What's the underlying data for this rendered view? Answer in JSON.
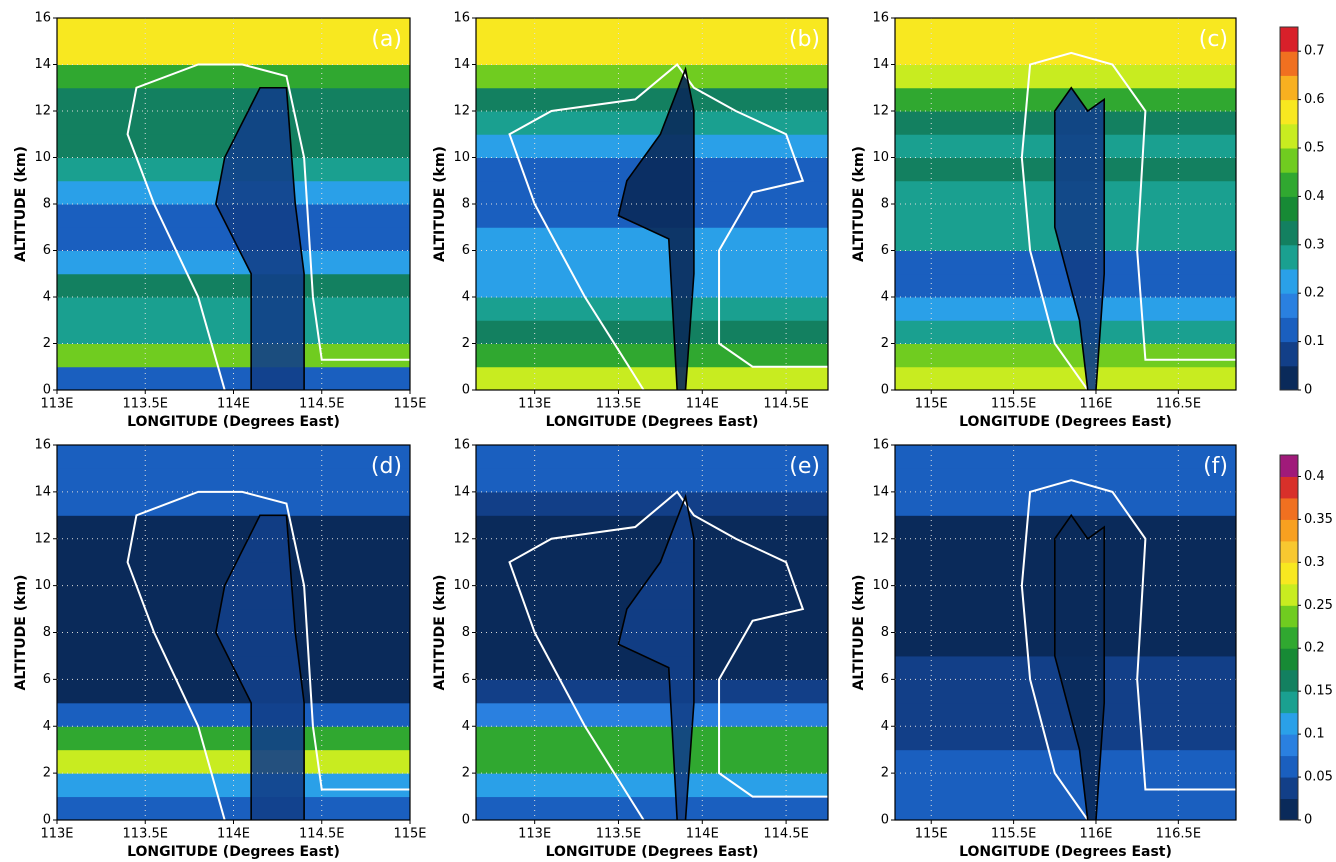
{
  "chart_data": [
    {
      "type": "contour",
      "panel": "(a)",
      "xlabel": "LONGITUDE (Degrees East)",
      "ylabel": "ALTITUDE (km)",
      "xlim": [
        113,
        115
      ],
      "xticks": [
        {
          "value": 113,
          "label": "113E"
        },
        {
          "value": 113.5,
          "label": "113.5E"
        },
        {
          "value": 114,
          "label": "114E"
        },
        {
          "value": 114.5,
          "label": "114.5E"
        },
        {
          "value": 115,
          "label": "115E"
        }
      ],
      "ylim": [
        0,
        16
      ],
      "yticks": [
        0,
        2,
        4,
        6,
        8,
        10,
        12,
        14,
        16
      ],
      "grid": true,
      "colorbar_row": 0,
      "layer_alt": [
        0,
        1,
        2,
        3,
        4,
        5,
        6,
        7,
        8,
        9,
        10,
        11,
        12,
        13,
        14,
        15,
        16
      ],
      "profile": [
        0.15,
        0.45,
        0.3,
        0.25,
        0.35,
        0.2,
        0.15,
        0.15,
        0.2,
        0.3,
        0.35,
        0.35,
        0.35,
        0.4,
        0.6,
        0.6
      ],
      "core_value": 0.05,
      "white_contour": {
        "lon": [
          113.95,
          113.8,
          113.55,
          113.4,
          113.45,
          113.8,
          114.05,
          114.3,
          114.4,
          114.45,
          114.5,
          115
        ],
        "alt": [
          0,
          4,
          8,
          11,
          13,
          14,
          14,
          13.5,
          10,
          4,
          1.3,
          1.3
        ]
      },
      "black_contour": {
        "lon": [
          114.1,
          114.1,
          113.9,
          113.95,
          114.15,
          114.3,
          114.35,
          114.4,
          114.4
        ],
        "alt": [
          0,
          5,
          8,
          10,
          13,
          13,
          8,
          5,
          0
        ]
      }
    },
    {
      "type": "contour",
      "panel": "(b)",
      "xlabel": "LONGITUDE (Degrees East)",
      "ylabel": "ALTITUDE (km)",
      "xlim": [
        112.65,
        114.75
      ],
      "xticks": [
        {
          "value": 113,
          "label": "113E"
        },
        {
          "value": 113.5,
          "label": "113.5E"
        },
        {
          "value": 114,
          "label": "114E"
        },
        {
          "value": 114.5,
          "label": "114.5E"
        }
      ],
      "ylim": [
        0,
        16
      ],
      "yticks": [
        0,
        2,
        4,
        6,
        8,
        10,
        12,
        14,
        16
      ],
      "grid": true,
      "colorbar_row": 0,
      "layer_alt": [
        0,
        1,
        2,
        3,
        4,
        5,
        6,
        7,
        8,
        9,
        10,
        11,
        12,
        13,
        14,
        15,
        16
      ],
      "profile": [
        0.5,
        0.4,
        0.35,
        0.3,
        0.2,
        0.2,
        0.2,
        0.15,
        0.15,
        0.15,
        0.2,
        0.25,
        0.35,
        0.45,
        0.55,
        0.6
      ],
      "core_value": 0.02,
      "white_contour": {
        "lon": [
          113.65,
          113.3,
          113.0,
          112.85,
          113.1,
          113.6,
          113.85,
          113.95,
          114.2,
          114.5,
          114.6,
          114.3,
          114.1,
          114.1,
          114.3,
          114.75
        ],
        "alt": [
          0,
          4,
          8,
          11,
          12,
          12.5,
          14,
          13,
          12,
          11,
          9,
          8.5,
          6,
          2,
          1,
          1
        ]
      },
      "black_contour": {
        "lon": [
          113.85,
          113.8,
          113.5,
          113.55,
          113.75,
          113.9,
          113.95,
          113.95,
          113.9
        ],
        "alt": [
          0,
          6.5,
          7.5,
          9,
          11,
          13.8,
          12,
          5,
          0
        ]
      }
    },
    {
      "type": "contour",
      "panel": "(c)",
      "xlabel": "LONGITUDE (Degrees East)",
      "ylabel": "ALTITUDE (km)",
      "xlim": [
        114.78,
        116.85
      ],
      "xticks": [
        {
          "value": 115,
          "label": "115E"
        },
        {
          "value": 115.5,
          "label": "115.5E"
        },
        {
          "value": 116,
          "label": "116E"
        },
        {
          "value": 116.5,
          "label": "116.5E"
        }
      ],
      "ylim": [
        0,
        16
      ],
      "yticks": [
        0,
        2,
        4,
        6,
        8,
        10,
        12,
        14,
        16
      ],
      "grid": true,
      "colorbar_row": 0,
      "layer_alt": [
        0,
        1,
        2,
        3,
        4,
        5,
        6,
        7,
        8,
        9,
        10,
        11,
        12,
        13,
        14,
        15,
        16
      ],
      "profile": [
        0.5,
        0.45,
        0.3,
        0.2,
        0.15,
        0.15,
        0.25,
        0.3,
        0.3,
        0.35,
        0.3,
        0.35,
        0.4,
        0.5,
        0.6,
        0.55
      ],
      "core_value": 0.05,
      "white_contour": {
        "lon": [
          115.95,
          115.75,
          115.6,
          115.55,
          115.6,
          115.85,
          116.1,
          116.3,
          116.25,
          116.3,
          116.85
        ],
        "alt": [
          0,
          2,
          6,
          10,
          14,
          14.5,
          14,
          12,
          6,
          1.3,
          1.3
        ]
      },
      "black_contour": {
        "lon": [
          115.95,
          115.9,
          115.75,
          115.75,
          115.85,
          115.95,
          116.05,
          116.05,
          116.0
        ],
        "alt": [
          0,
          3,
          7,
          12,
          13,
          12,
          12.5,
          5,
          0
        ]
      },
      "colorbar": {
        "clim": [
          0,
          0.75
        ],
        "ticks": [
          0,
          0.1,
          0.2,
          0.3,
          0.4,
          0.5,
          0.6,
          0.7
        ],
        "colors": [
          "#0a2a5a",
          "#123f88",
          "#1a5fbf",
          "#2a80e0",
          "#2aa0e8",
          "#1aa090",
          "#138060",
          "#178a35",
          "#30a830",
          "#70cc20",
          "#c8ec20",
          "#f8e820",
          "#f8b020",
          "#f07020",
          "#d8202a"
        ]
      }
    },
    {
      "type": "contour",
      "panel": "(d)",
      "xlabel": "LONGITUDE (Degrees East)",
      "ylabel": "ALTITUDE (km)",
      "xlim": [
        113,
        115
      ],
      "xticks": [
        {
          "value": 113,
          "label": "113E"
        },
        {
          "value": 113.5,
          "label": "113.5E"
        },
        {
          "value": 114,
          "label": "114E"
        },
        {
          "value": 114.5,
          "label": "114.5E"
        },
        {
          "value": 115,
          "label": "115E"
        }
      ],
      "ylim": [
        0,
        16
      ],
      "yticks": [
        0,
        2,
        4,
        6,
        8,
        10,
        12,
        14,
        16
      ],
      "grid": true,
      "colorbar_row": 1,
      "layer_alt": [
        0,
        1,
        2,
        3,
        4,
        5,
        6,
        7,
        8,
        9,
        10,
        11,
        12,
        13,
        14,
        15,
        16
      ],
      "profile": [
        0.05,
        0.12,
        0.25,
        0.2,
        0.05,
        0.02,
        0.02,
        0.02,
        0.02,
        0.02,
        0.02,
        0.02,
        0.02,
        0.05,
        0.05,
        0.07
      ],
      "core_value": 0.04,
      "white_contour": {
        "lon": [
          113.95,
          113.8,
          113.55,
          113.4,
          113.45,
          113.8,
          114.05,
          114.3,
          114.4,
          114.45,
          114.5,
          115
        ],
        "alt": [
          0,
          4,
          8,
          11,
          13,
          14,
          14,
          13.5,
          10,
          4,
          1.3,
          1.3
        ]
      },
      "black_contour": {
        "lon": [
          114.1,
          114.1,
          113.9,
          113.95,
          114.15,
          114.3,
          114.35,
          114.4,
          114.4
        ],
        "alt": [
          0,
          5,
          8,
          10,
          13,
          13,
          8,
          5,
          0
        ]
      }
    },
    {
      "type": "contour",
      "panel": "(e)",
      "xlabel": "LONGITUDE (Degrees East)",
      "ylabel": "ALTITUDE (km)",
      "xlim": [
        112.65,
        114.75
      ],
      "xticks": [
        {
          "value": 113,
          "label": "113E"
        },
        {
          "value": 113.5,
          "label": "113.5E"
        },
        {
          "value": 114,
          "label": "114E"
        },
        {
          "value": 114.5,
          "label": "114.5E"
        }
      ],
      "ylim": [
        0,
        16
      ],
      "yticks": [
        0,
        2,
        4,
        6,
        8,
        10,
        12,
        14,
        16
      ],
      "grid": true,
      "colorbar_row": 1,
      "layer_alt": [
        0,
        1,
        2,
        3,
        4,
        5,
        6,
        7,
        8,
        9,
        10,
        11,
        12,
        13,
        14,
        15,
        16
      ],
      "profile": [
        0.05,
        0.1,
        0.2,
        0.2,
        0.08,
        0.03,
        0.02,
        0.02,
        0.02,
        0.02,
        0.02,
        0.02,
        0.02,
        0.04,
        0.06,
        0.07
      ],
      "core_value": 0.03,
      "white_contour": {
        "lon": [
          113.65,
          113.3,
          113.0,
          112.85,
          113.1,
          113.6,
          113.85,
          113.95,
          114.2,
          114.5,
          114.6,
          114.3,
          114.1,
          114.1,
          114.3,
          114.75
        ],
        "alt": [
          0,
          4,
          8,
          11,
          12,
          12.5,
          14,
          13,
          12,
          11,
          9,
          8.5,
          6,
          2,
          1,
          1
        ]
      },
      "black_contour": {
        "lon": [
          113.85,
          113.8,
          113.5,
          113.55,
          113.75,
          113.9,
          113.95,
          113.95,
          113.9
        ],
        "alt": [
          0,
          6.5,
          7.5,
          9,
          11,
          13.8,
          12,
          5,
          0
        ]
      }
    },
    {
      "type": "contour",
      "panel": "(f)",
      "xlabel": "LONGITUDE (Degrees East)",
      "ylabel": "ALTITUDE (km)",
      "xlim": [
        114.78,
        116.85
      ],
      "xticks": [
        {
          "value": 115,
          "label": "115E"
        },
        {
          "value": 115.5,
          "label": "115.5E"
        },
        {
          "value": 116,
          "label": "116E"
        },
        {
          "value": 116.5,
          "label": "116.5E"
        }
      ],
      "ylim": [
        0,
        16
      ],
      "yticks": [
        0,
        2,
        4,
        6,
        8,
        10,
        12,
        14,
        16
      ],
      "grid": true,
      "colorbar_row": 1,
      "layer_alt": [
        0,
        1,
        2,
        3,
        4,
        5,
        6,
        7,
        8,
        9,
        10,
        11,
        12,
        13,
        14,
        15,
        16
      ],
      "profile": [
        0.05,
        0.07,
        0.05,
        0.04,
        0.04,
        0.04,
        0.03,
        0.02,
        0.02,
        0.02,
        0.02,
        0.02,
        0.02,
        0.05,
        0.07,
        0.05
      ],
      "core_value": 0.01,
      "white_contour": {
        "lon": [
          115.95,
          115.75,
          115.6,
          115.55,
          115.6,
          115.85,
          116.1,
          116.3,
          116.25,
          116.3,
          116.85
        ],
        "alt": [
          0,
          2,
          6,
          10,
          14,
          14.5,
          14,
          12,
          6,
          1.3,
          1.3
        ]
      },
      "black_contour": {
        "lon": [
          115.95,
          115.9,
          115.75,
          115.75,
          115.85,
          115.95,
          116.05,
          116.05,
          116.0
        ],
        "alt": [
          0,
          3,
          7,
          12,
          13,
          12,
          12.5,
          5,
          0
        ]
      },
      "colorbar": {
        "clim": [
          0,
          0.425
        ],
        "ticks": [
          0,
          0.05,
          0.1,
          0.15,
          0.2,
          0.25,
          0.3,
          0.35,
          0.4
        ],
        "colors": [
          "#0a2a5a",
          "#123f88",
          "#1a5fbf",
          "#2a80e0",
          "#2aa0e8",
          "#1aa090",
          "#138060",
          "#178a35",
          "#30a830",
          "#70cc20",
          "#c8ec20",
          "#f8e820",
          "#f8c830",
          "#f8a020",
          "#f07020",
          "#d8302a",
          "#a01a7a"
        ]
      }
    }
  ]
}
